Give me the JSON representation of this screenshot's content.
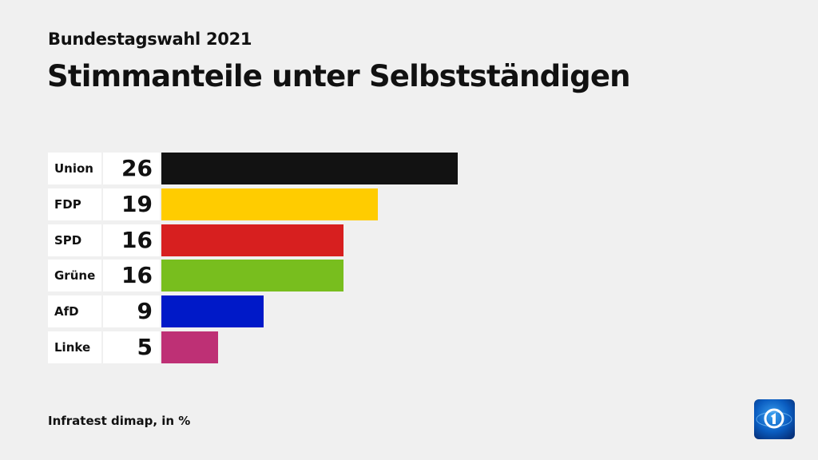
{
  "header": {
    "kicker": "Bundestagswahl 2021",
    "title": "Stimmanteile unter Selbstständigen"
  },
  "chart_data": {
    "type": "bar",
    "orientation": "horizontal",
    "categories": [
      "Union",
      "FDP",
      "SPD",
      "Grüne",
      "AfD",
      "Linke"
    ],
    "values": [
      26,
      19,
      16,
      16,
      9,
      5
    ],
    "colors": [
      "#121212",
      "#ffcc00",
      "#d71f1f",
      "#78be1e",
      "#0019c8",
      "#be3075"
    ],
    "unit": "%",
    "grid": false
  },
  "footer": {
    "source": "Infratest dimap, in %"
  },
  "logo": {
    "name": "tagesschau-ard-logo"
  }
}
